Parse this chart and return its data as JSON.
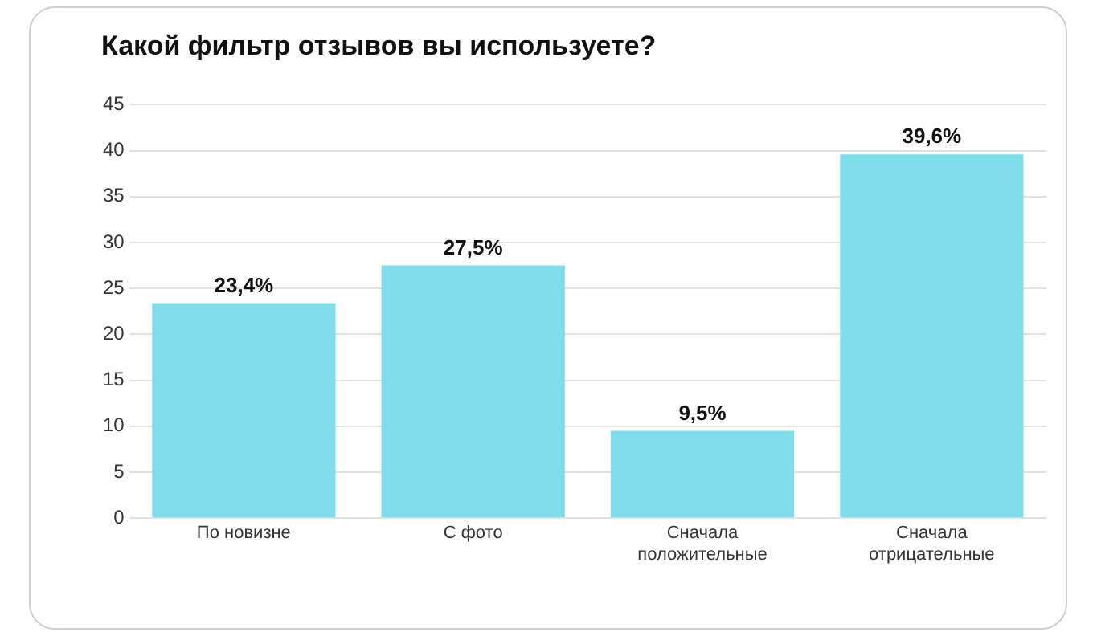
{
  "chart_data": {
    "type": "bar",
    "title": "Какой фильтр отзывов вы используете?",
    "categories": [
      "По новизне",
      "С фото",
      "Сначала положительные",
      "Сначала отрицательные"
    ],
    "values": [
      23.4,
      27.5,
      9.5,
      39.6
    ],
    "value_labels": [
      "23,4%",
      "27,5%",
      "9,5%",
      "39,6%"
    ],
    "color": "#7fdde9",
    "ylim": [
      0,
      45
    ],
    "yticks": [
      0,
      5,
      10,
      15,
      20,
      25,
      30,
      35,
      40,
      45
    ],
    "grid": "y",
    "legend": false
  }
}
